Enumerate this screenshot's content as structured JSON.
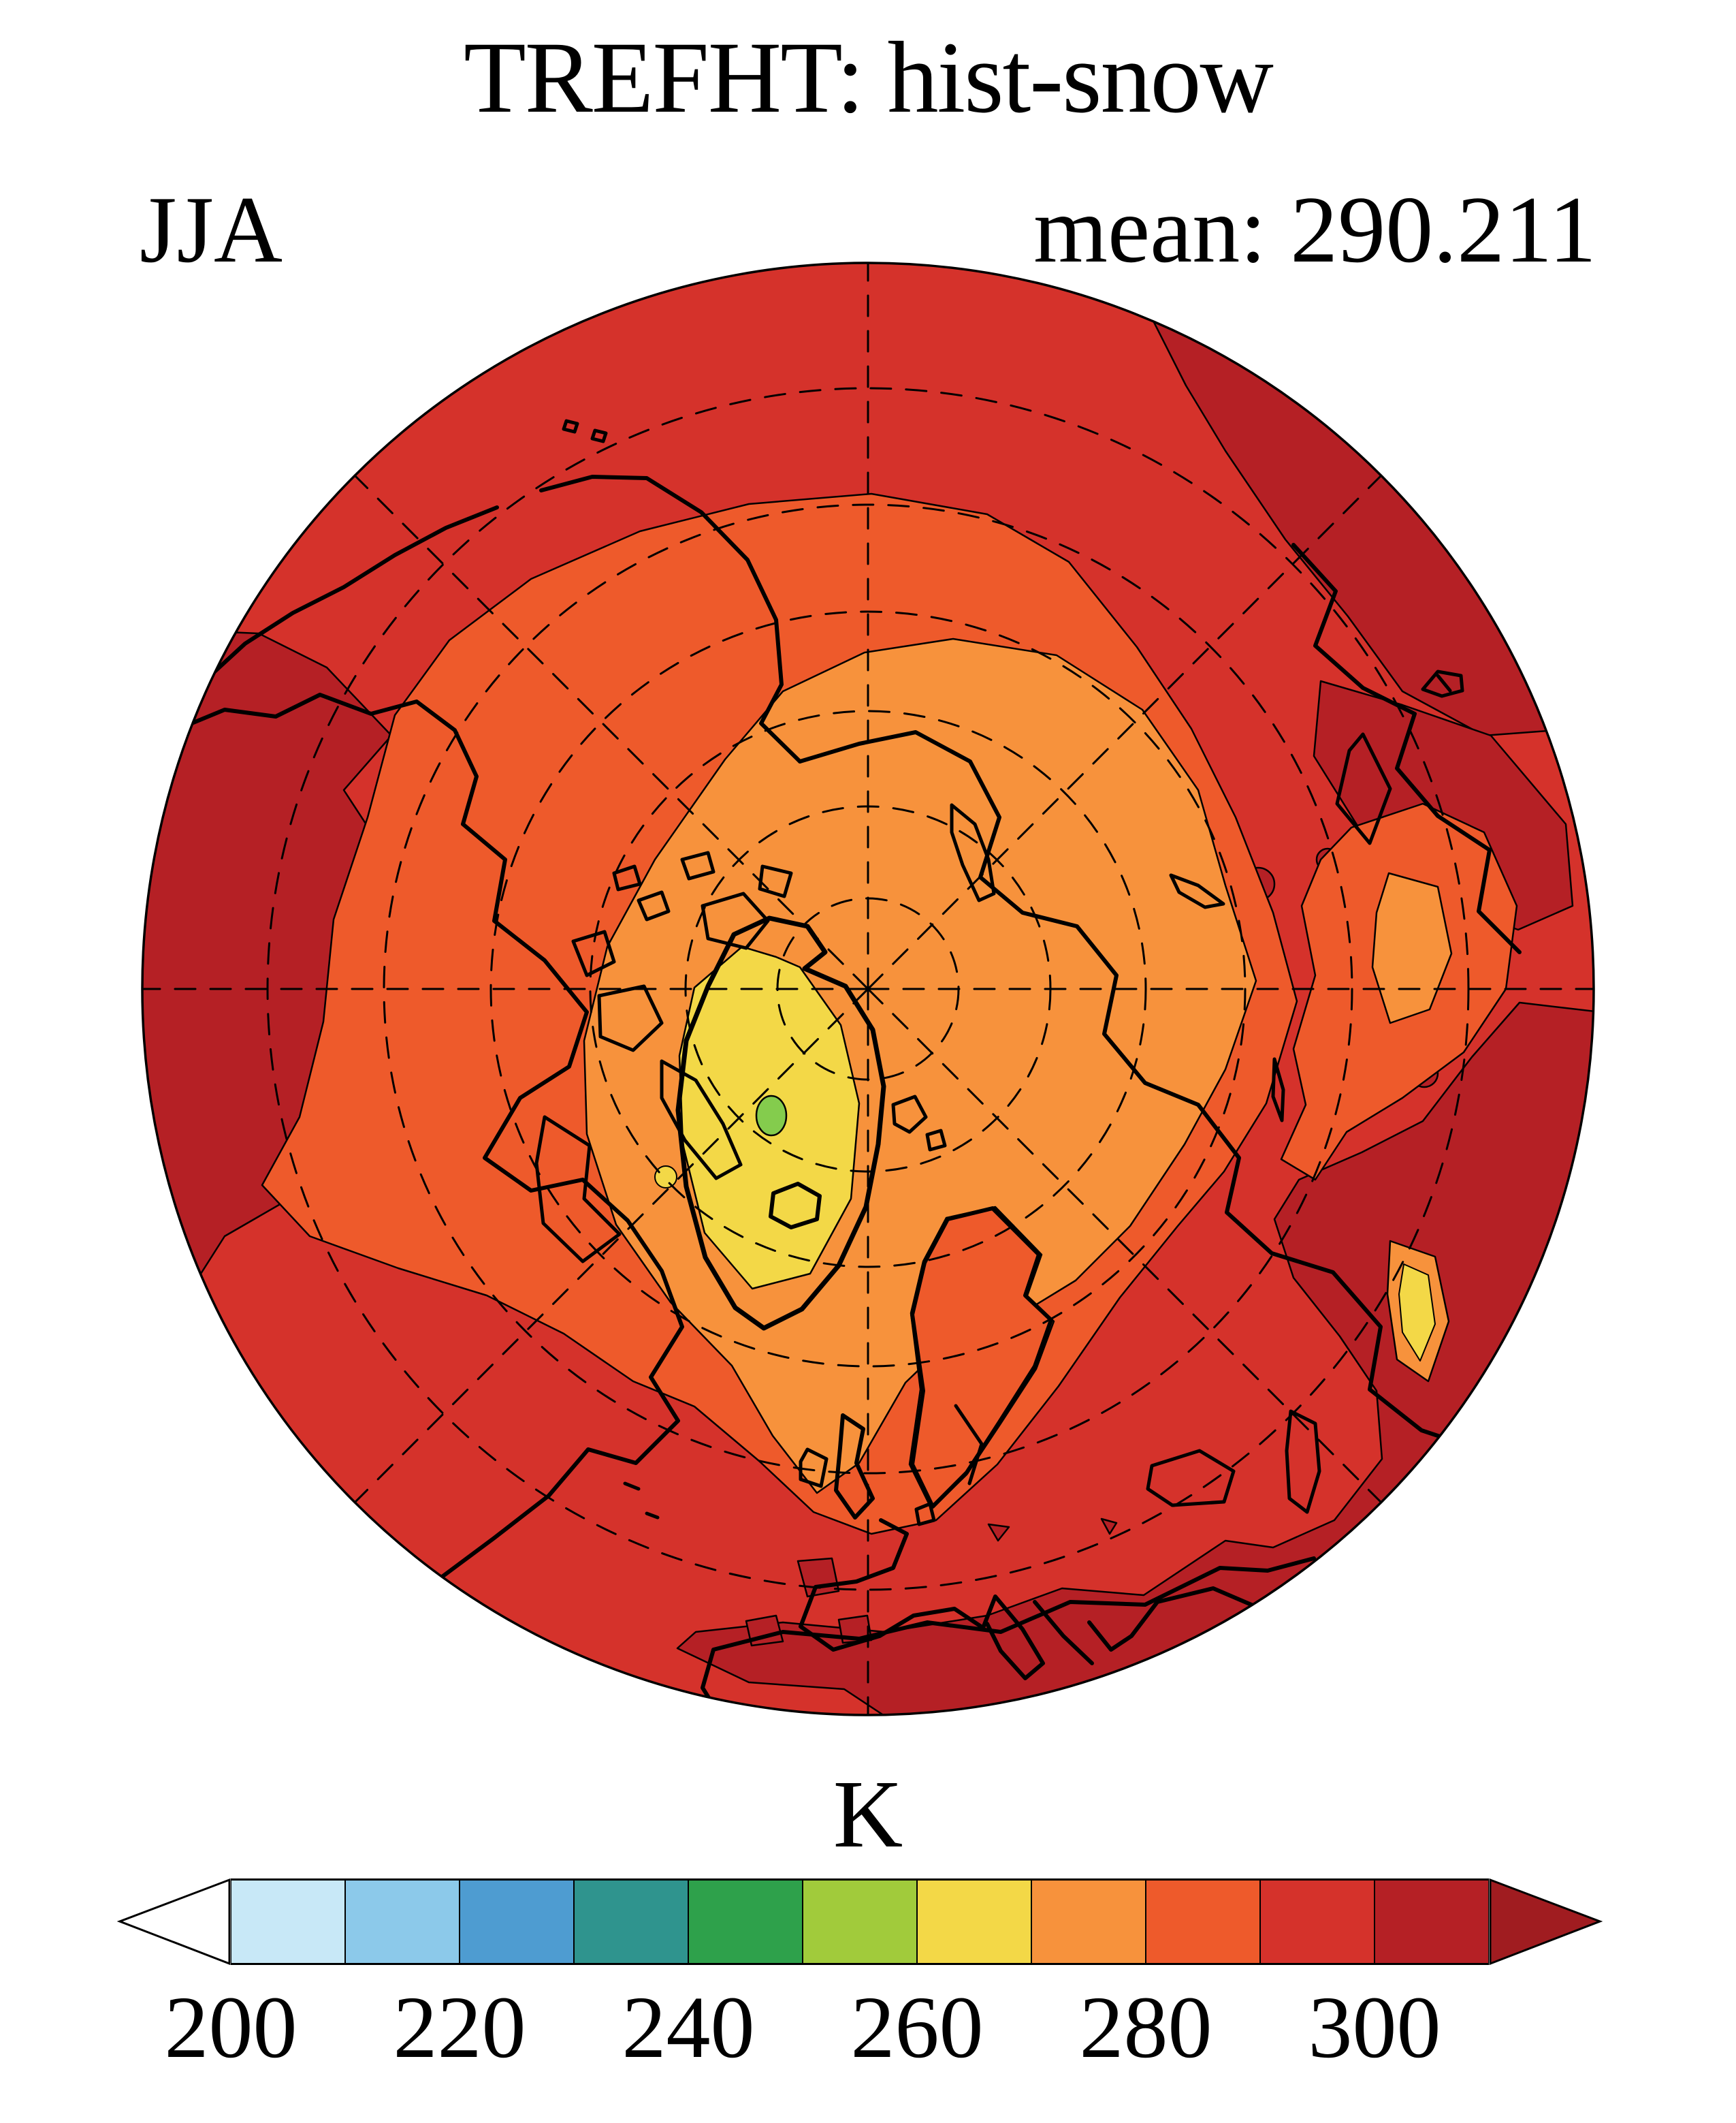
{
  "header": {
    "title": "TREFHT: hist-snow",
    "season_label": "JJA",
    "mean_label": "mean: 290.211"
  },
  "colorbar": {
    "unit_label": "K",
    "tick_labels": [
      "200",
      "220",
      "240",
      "260",
      "280",
      "300"
    ]
  },
  "colors": {
    "background": "#FFFFFF",
    "text": "#000000",
    "coast": "#000000",
    "graticule": "#000000",
    "under": "#FFFFFF",
    "c200": "#C8E8F7",
    "c210": "#8CC9EA",
    "c220": "#4E9CD1",
    "c230": "#2F948E",
    "c240": "#2EA14B",
    "c250": "#A1CB3B",
    "c260": "#F3D847",
    "c270": "#F7923C",
    "c280": "#EE5A2B",
    "c290": "#D5322B",
    "c300": "#B52025",
    "over": "#A01C20",
    "spot": "#84CC4D"
  },
  "chart_data": {
    "type": "filled-contour-map",
    "projection": "north-polar-stereographic",
    "title": "TREFHT: hist-snow",
    "variable": "TREFHT",
    "experiment": "hist-snow",
    "season": "JJA",
    "mean": 290.211,
    "units": "K",
    "contour_interval": 10,
    "levels": [
      200,
      210,
      220,
      230,
      240,
      250,
      260,
      270,
      280,
      290,
      300,
      310
    ],
    "tick_values": [
      200,
      220,
      240,
      260,
      280,
      300
    ],
    "band_colors": [
      "#C8E8F7",
      "#8CC9EA",
      "#4E9CD1",
      "#2F948E",
      "#2EA14B",
      "#A1CB3B",
      "#F3D847",
      "#F7923C",
      "#EE5A2B",
      "#D5322B",
      "#B52025"
    ],
    "bands": [
      {
        "range": [
          200,
          210
        ],
        "color": "#C8E8F7"
      },
      {
        "range": [
          210,
          220
        ],
        "color": "#8CC9EA"
      },
      {
        "range": [
          220,
          230
        ],
        "color": "#4E9CD1"
      },
      {
        "range": [
          230,
          240
        ],
        "color": "#2F948E"
      },
      {
        "range": [
          240,
          250
        ],
        "color": "#2EA14B"
      },
      {
        "range": [
          250,
          260
        ],
        "color": "#A1CB3B"
      },
      {
        "range": [
          260,
          270
        ],
        "color": "#F3D847"
      },
      {
        "range": [
          270,
          280
        ],
        "color": "#F7923C"
      },
      {
        "range": [
          280,
          290
        ],
        "color": "#EE5A2B"
      },
      {
        "range": [
          290,
          300
        ],
        "color": "#D5322B"
      },
      {
        "range": [
          300,
          310
        ],
        "color": "#B52025"
      }
    ],
    "under_color": "#FFFFFF",
    "over_color": "#A01C20",
    "colorbar_orientation": "horizontal",
    "colorbar_arrows": "both",
    "graticule": {
      "latitude_circles_deg": [
        80,
        70,
        60,
        50,
        40,
        30
      ],
      "meridian_step_deg": 45,
      "style": "dashed"
    },
    "map_summary": [
      "Dark red (300-310 K) over continental interiors: northwest North America, central and eastern Asia, Middle East and North Africa",
      "Red (290-300 K) over mid-latitude oceans, Europe and the outer ring of the map",
      "Orange-red (280-290 K) band across the sub-Arctic continents and North Atlantic",
      "Orange (270-280 K) over the central Arctic Ocean and Canadian archipelago",
      "Yellow (260-270 K) over the Greenland interior with a small green (250-260 K) core"
    ]
  }
}
